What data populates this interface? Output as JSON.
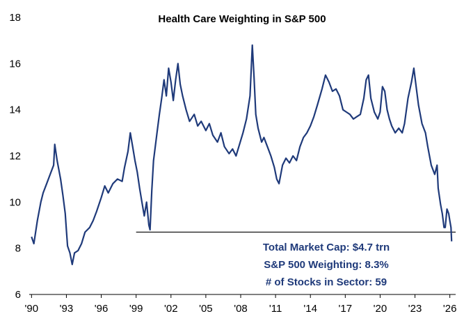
{
  "chart_data": {
    "type": "line",
    "title": "Health Care Weighting in S&P 500",
    "xlabel": "",
    "ylabel": "",
    "xlim": [
      1989.8,
      2026.5
    ],
    "ylim": [
      6,
      18
    ],
    "y_ticks": [
      6,
      8,
      10,
      12,
      14,
      16,
      18
    ],
    "x_ticks": [
      {
        "year": 1990,
        "label": "'90"
      },
      {
        "year": 1993,
        "label": "'93"
      },
      {
        "year": 1996,
        "label": "'96"
      },
      {
        "year": 1999,
        "label": "'99"
      },
      {
        "year": 2002,
        "label": "'02"
      },
      {
        "year": 2005,
        "label": "'05"
      },
      {
        "year": 2008,
        "label": "'08"
      },
      {
        "year": 2011,
        "label": "'11"
      },
      {
        "year": 2014,
        "label": "'14"
      },
      {
        "year": 2017,
        "label": "'17"
      },
      {
        "year": 2020,
        "label": "'20"
      },
      {
        "year": 2023,
        "label": "'23"
      },
      {
        "year": 2026,
        "label": "'26"
      }
    ],
    "grid": false,
    "series": [
      {
        "color": "#1f3a7a",
        "points": [
          [
            1990.0,
            8.5
          ],
          [
            1990.2,
            8.2
          ],
          [
            1990.5,
            9.2
          ],
          [
            1990.8,
            10.0
          ],
          [
            1991.0,
            10.4
          ],
          [
            1991.3,
            10.8
          ],
          [
            1991.6,
            11.2
          ],
          [
            1991.9,
            11.6
          ],
          [
            1992.0,
            12.5
          ],
          [
            1992.2,
            11.8
          ],
          [
            1992.5,
            11.0
          ],
          [
            1992.7,
            10.3
          ],
          [
            1992.9,
            9.5
          ],
          [
            1993.0,
            8.8
          ],
          [
            1993.1,
            8.1
          ],
          [
            1993.3,
            7.8
          ],
          [
            1993.5,
            7.3
          ],
          [
            1993.7,
            7.8
          ],
          [
            1994.0,
            7.9
          ],
          [
            1994.3,
            8.2
          ],
          [
            1994.6,
            8.7
          ],
          [
            1995.0,
            8.9
          ],
          [
            1995.3,
            9.2
          ],
          [
            1995.6,
            9.6
          ],
          [
            1996.0,
            10.2
          ],
          [
            1996.3,
            10.7
          ],
          [
            1996.6,
            10.4
          ],
          [
            1997.0,
            10.8
          ],
          [
            1997.4,
            11.0
          ],
          [
            1997.8,
            10.9
          ],
          [
            1998.0,
            11.5
          ],
          [
            1998.3,
            12.2
          ],
          [
            1998.5,
            13.0
          ],
          [
            1998.7,
            12.4
          ],
          [
            1998.9,
            11.8
          ],
          [
            1999.1,
            11.3
          ],
          [
            1999.3,
            10.6
          ],
          [
            1999.5,
            10.0
          ],
          [
            1999.7,
            9.4
          ],
          [
            1999.9,
            10.0
          ],
          [
            2000.1,
            9.0
          ],
          [
            2000.2,
            8.8
          ],
          [
            2000.35,
            10.5
          ],
          [
            2000.5,
            11.8
          ],
          [
            2000.8,
            13.0
          ],
          [
            2001.0,
            13.8
          ],
          [
            2001.2,
            14.5
          ],
          [
            2001.4,
            15.3
          ],
          [
            2001.6,
            14.6
          ],
          [
            2001.8,
            15.8
          ],
          [
            2002.0,
            15.2
          ],
          [
            2002.2,
            14.4
          ],
          [
            2002.4,
            15.3
          ],
          [
            2002.6,
            16.0
          ],
          [
            2002.8,
            15.1
          ],
          [
            2003.0,
            14.6
          ],
          [
            2003.3,
            14.0
          ],
          [
            2003.6,
            13.5
          ],
          [
            2004.0,
            13.8
          ],
          [
            2004.3,
            13.3
          ],
          [
            2004.6,
            13.5
          ],
          [
            2005.0,
            13.1
          ],
          [
            2005.3,
            13.4
          ],
          [
            2005.6,
            12.9
          ],
          [
            2006.0,
            12.6
          ],
          [
            2006.3,
            13.0
          ],
          [
            2006.6,
            12.4
          ],
          [
            2007.0,
            12.1
          ],
          [
            2007.3,
            12.3
          ],
          [
            2007.6,
            12.0
          ],
          [
            2007.9,
            12.5
          ],
          [
            2008.2,
            13.0
          ],
          [
            2008.5,
            13.6
          ],
          [
            2008.8,
            14.6
          ],
          [
            2009.0,
            16.8
          ],
          [
            2009.15,
            15.4
          ],
          [
            2009.3,
            13.8
          ],
          [
            2009.5,
            13.2
          ],
          [
            2009.8,
            12.6
          ],
          [
            2010.0,
            12.8
          ],
          [
            2010.3,
            12.4
          ],
          [
            2010.6,
            12.0
          ],
          [
            2010.9,
            11.5
          ],
          [
            2011.1,
            11.0
          ],
          [
            2011.3,
            10.8
          ],
          [
            2011.6,
            11.6
          ],
          [
            2011.9,
            11.9
          ],
          [
            2012.2,
            11.7
          ],
          [
            2012.5,
            12.0
          ],
          [
            2012.8,
            11.8
          ],
          [
            2013.1,
            12.4
          ],
          [
            2013.4,
            12.8
          ],
          [
            2013.7,
            13.0
          ],
          [
            2014.0,
            13.3
          ],
          [
            2014.3,
            13.7
          ],
          [
            2014.6,
            14.2
          ],
          [
            2015.0,
            14.9
          ],
          [
            2015.3,
            15.5
          ],
          [
            2015.6,
            15.2
          ],
          [
            2015.9,
            14.8
          ],
          [
            2016.2,
            14.9
          ],
          [
            2016.5,
            14.6
          ],
          [
            2016.8,
            14.0
          ],
          [
            2017.1,
            13.9
          ],
          [
            2017.4,
            13.8
          ],
          [
            2017.7,
            13.6
          ],
          [
            2018.0,
            13.7
          ],
          [
            2018.3,
            13.8
          ],
          [
            2018.6,
            14.5
          ],
          [
            2018.8,
            15.3
          ],
          [
            2019.0,
            15.5
          ],
          [
            2019.2,
            14.5
          ],
          [
            2019.5,
            13.9
          ],
          [
            2019.8,
            13.6
          ],
          [
            2020.0,
            13.9
          ],
          [
            2020.2,
            15.0
          ],
          [
            2020.4,
            14.8
          ],
          [
            2020.6,
            14.0
          ],
          [
            2020.8,
            13.6
          ],
          [
            2021.0,
            13.3
          ],
          [
            2021.3,
            13.0
          ],
          [
            2021.6,
            13.2
          ],
          [
            2021.9,
            13.0
          ],
          [
            2022.1,
            13.4
          ],
          [
            2022.4,
            14.5
          ],
          [
            2022.7,
            15.2
          ],
          [
            2022.9,
            15.8
          ],
          [
            2023.1,
            15.0
          ],
          [
            2023.3,
            14.2
          ],
          [
            2023.6,
            13.4
          ],
          [
            2023.9,
            13.0
          ],
          [
            2024.1,
            12.4
          ],
          [
            2024.4,
            11.6
          ],
          [
            2024.7,
            11.2
          ],
          [
            2024.9,
            11.6
          ],
          [
            2025.0,
            10.6
          ],
          [
            2025.2,
            9.9
          ],
          [
            2025.35,
            9.5
          ],
          [
            2025.5,
            8.9
          ],
          [
            2025.6,
            8.9
          ],
          [
            2025.75,
            9.7
          ],
          [
            2025.9,
            9.5
          ],
          [
            2026.0,
            9.2
          ],
          [
            2026.1,
            8.9
          ],
          [
            2026.15,
            8.3
          ]
        ]
      }
    ],
    "reference_line": {
      "y": 8.7,
      "x_start": 1999.0,
      "x_end": 2026.5
    },
    "annotations": [
      "Total Market Cap: $4.7 trn",
      "S&P 500 Weighting: 8.3%",
      "# of Stocks in Sector: 59"
    ]
  }
}
